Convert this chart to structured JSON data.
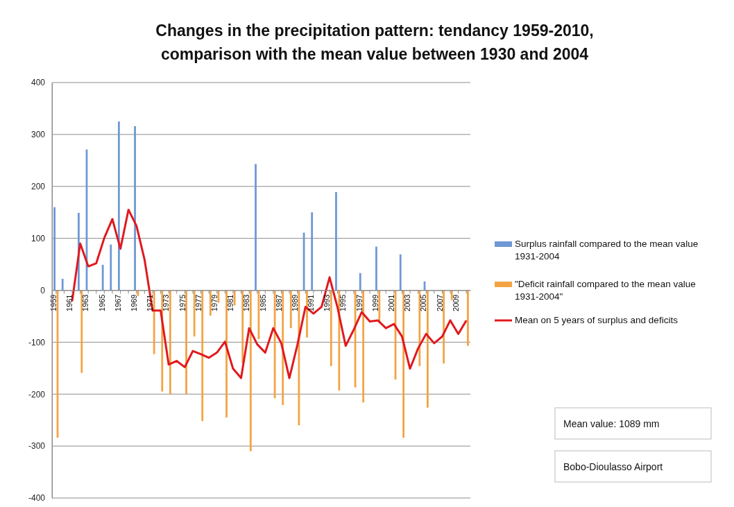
{
  "chart_data": {
    "type": "bar",
    "title": "Changes in the precipitation pattern: tendancy 1959-2010,\ncomparison with the mean value between 1930 and 2004",
    "categories": [
      "1959",
      null,
      "1961",
      null,
      "1963",
      null,
      "1965",
      null,
      "1967",
      null,
      "1969",
      null,
      "1971",
      null,
      "1973",
      null,
      "1975",
      null,
      "1977",
      null,
      "1979",
      null,
      "1981",
      null,
      "1983",
      null,
      "1985",
      null,
      "1987",
      null,
      "1989",
      null,
      "1991",
      null,
      "1993",
      null,
      "1995",
      null,
      "1997",
      null,
      "1999",
      null,
      "2001",
      null,
      "2003",
      null,
      "2005",
      null,
      "2007",
      null,
      "2009",
      null
    ],
    "series": [
      {
        "name": "Surplus rainfall compared to the mean value 1931-2004",
        "color": "#6f98d6",
        "values": [
          160,
          22,
          null,
          149,
          271,
          null,
          49,
          88,
          325,
          null,
          316,
          null,
          null,
          null,
          null,
          null,
          null,
          null,
          null,
          null,
          null,
          null,
          null,
          null,
          null,
          243,
          null,
          null,
          null,
          null,
          null,
          111,
          150,
          null,
          null,
          189,
          null,
          null,
          33,
          null,
          84,
          null,
          null,
          69,
          null,
          null,
          17,
          null,
          null,
          null,
          null,
          null
        ]
      },
      {
        "name": "\"Deficit rainfall compared to the mean value 1931-2004\"",
        "color": "#f2a444",
        "values": [
          -284,
          null,
          null,
          -159,
          null,
          null,
          null,
          null,
          null,
          null,
          -11,
          null,
          -123,
          -195,
          -200,
          null,
          -200,
          -89,
          -252,
          -49,
          -24,
          -245,
          -29,
          -140,
          -310,
          -94,
          null,
          -208,
          -221,
          -73,
          -260,
          -91,
          null,
          null,
          -146,
          -193,
          null,
          -187,
          -216,
          null,
          -63,
          null,
          -172,
          -284,
          null,
          -146,
          -226,
          null,
          -141,
          -19,
          null,
          -107
        ]
      },
      {
        "name": "Mean on 5 years of surplus and deficits",
        "color": "#e0191e",
        "type": "line",
        "values": [
          null,
          null,
          -21,
          90,
          46,
          52,
          101,
          137,
          80,
          155,
          124,
          59,
          -39,
          -39,
          -143,
          -136,
          -148,
          -117,
          -123,
          -130,
          -120,
          -99,
          -151,
          -169,
          -73,
          -104,
          -120,
          -73,
          -102,
          -169,
          -105,
          -32,
          -45,
          -32,
          25,
          -34,
          -107,
          -76,
          -42,
          -60,
          -58,
          -73,
          -65,
          -89,
          -151,
          -112,
          -84,
          -102,
          -89,
          -58,
          -84,
          -58
        ]
      }
    ],
    "ylim": [
      -400,
      400
    ],
    "yticks": [
      -400,
      -300,
      -200,
      -100,
      0,
      100,
      200,
      300,
      400
    ],
    "grid": "y",
    "legend": "right",
    "marker": "none",
    "line_style": "solid",
    "annotations": [
      "Mean value: 1089 mm",
      "Bobo-Dioulasso Airport"
    ]
  }
}
